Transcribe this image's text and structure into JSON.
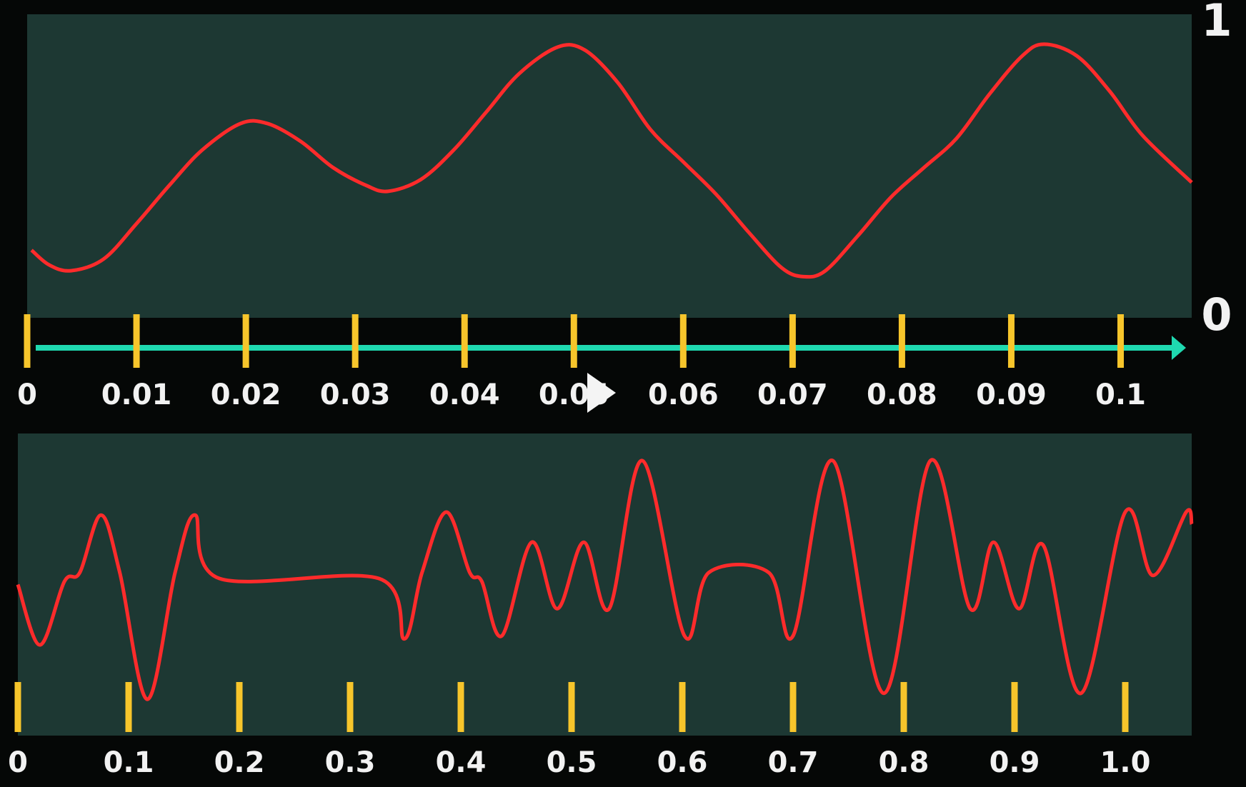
{
  "chart_data": [
    {
      "type": "line",
      "x": [
        0.0004,
        0.002,
        0.004,
        0.007,
        0.01,
        0.013,
        0.016,
        0.0195,
        0.022,
        0.025,
        0.028,
        0.031,
        0.033,
        0.036,
        0.039,
        0.042,
        0.045,
        0.0485,
        0.051,
        0.054,
        0.057,
        0.06,
        0.063,
        0.066,
        0.069,
        0.071,
        0.073,
        0.076,
        0.079,
        0.082,
        0.085,
        0.088,
        0.091,
        0.093,
        0.096,
        0.099,
        0.102,
        0.1065
      ],
      "series": [
        {
          "color": "#ff2b2b",
          "values": [
            0.23,
            0.18,
            0.16,
            0.2,
            0.32,
            0.45,
            0.57,
            0.66,
            0.66,
            0.6,
            0.51,
            0.45,
            0.43,
            0.47,
            0.57,
            0.7,
            0.83,
            0.92,
            0.91,
            0.8,
            0.64,
            0.53,
            0.42,
            0.29,
            0.17,
            0.14,
            0.16,
            0.28,
            0.41,
            0.51,
            0.61,
            0.76,
            0.89,
            0.93,
            0.89,
            0.77,
            0.62,
            0.46
          ]
        }
      ],
      "xlim": [
        0,
        0.1065
      ],
      "xticks": [
        0,
        0.01,
        0.02,
        0.03,
        0.04,
        0.05,
        0.06,
        0.07,
        0.08,
        0.09,
        0.1
      ],
      "ylim": [
        0,
        1
      ],
      "yticks": [
        0,
        1
      ]
    },
    {
      "type": "line",
      "x": [
        0,
        0.02,
        0.042,
        0.056,
        0.075,
        0.092,
        0.117,
        0.142,
        0.16,
        0.182,
        0.326,
        0.349,
        0.365,
        0.387,
        0.408,
        0.419,
        0.437,
        0.464,
        0.487,
        0.511,
        0.534,
        0.564,
        0.602,
        0.624,
        0.678,
        0.7,
        0.736,
        0.782,
        0.824,
        0.86,
        0.881,
        0.904,
        0.926,
        0.96,
        1.0,
        1.025,
        1.055,
        1.06
      ],
      "series": [
        {
          "color": "#ff2b2b",
          "values": [
            0.5,
            0.3,
            0.51,
            0.54,
            0.73,
            0.54,
            0.12,
            0.54,
            0.73,
            0.52,
            0.52,
            0.32,
            0.54,
            0.74,
            0.54,
            0.51,
            0.33,
            0.64,
            0.42,
            0.64,
            0.42,
            0.91,
            0.33,
            0.54,
            0.54,
            0.33,
            0.91,
            0.14,
            0.91,
            0.42,
            0.64,
            0.42,
            0.63,
            0.14,
            0.74,
            0.53,
            0.74,
            0.7
          ]
        }
      ],
      "xlim": [
        0,
        1.06
      ],
      "xticks": [
        0,
        0.1,
        0.2,
        0.3,
        0.4,
        0.5,
        0.6,
        0.7,
        0.8,
        0.9,
        {
          "value": 1,
          "label": "1.0"
        }
      ],
      "ylim": [
        0,
        1
      ]
    }
  ]
}
